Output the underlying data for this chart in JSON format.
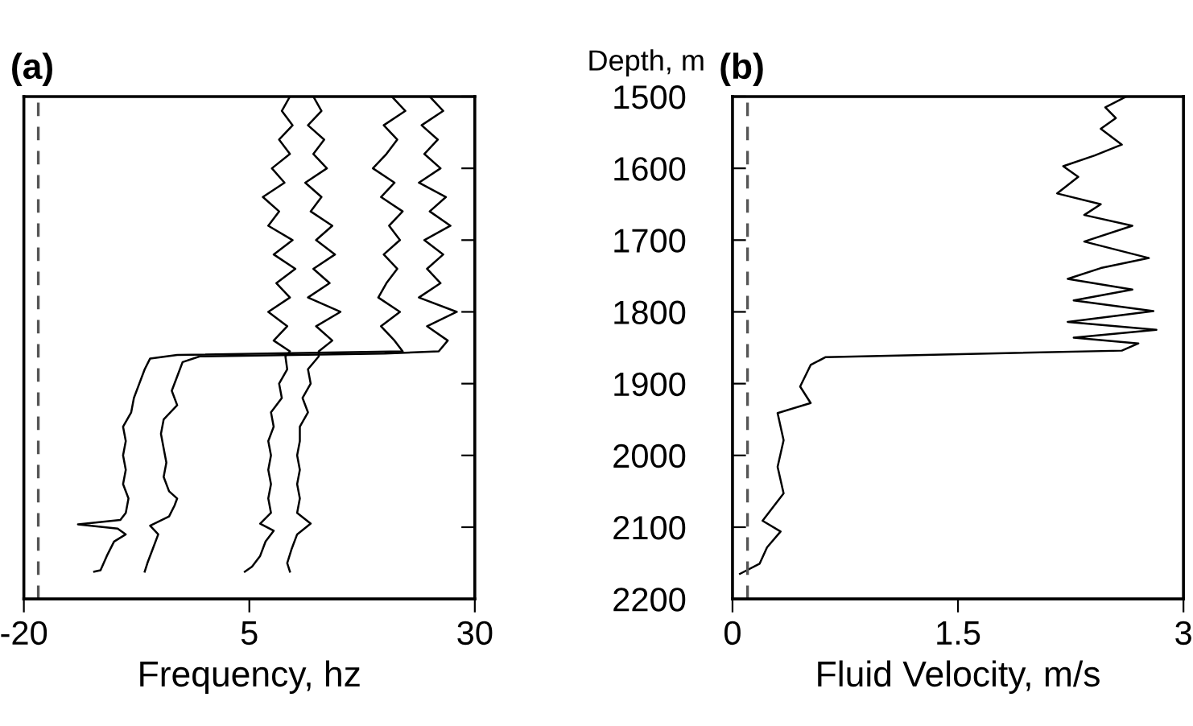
{
  "chart_data": [
    {
      "type": "line",
      "title": "(a)",
      "xlabel": "Frequency, hz",
      "ylabel": "Depth, m",
      "orientation": "horizontal",
      "xlim": [
        -20,
        30
      ],
      "xticks": [
        -20,
        5,
        30
      ],
      "ylim": [
        2200,
        1500
      ],
      "yticks": [
        1500,
        1600,
        1700,
        1800,
        1900,
        2000,
        2100,
        2200
      ],
      "grid": false,
      "marker": "none",
      "line_style": "solid",
      "ref_lines": [
        {
          "axis": "x",
          "value": -18.4,
          "color": "#555555",
          "line_style": "dashed"
        }
      ],
      "series": [
        {
          "color": "#000000",
          "x": [
            1500,
            1520,
            1540,
            1560,
            1580,
            1600,
            1620,
            1640,
            1660,
            1680,
            1700,
            1720,
            1740,
            1760,
            1780,
            1800,
            1820,
            1840,
            1855,
            1862,
            1880,
            1900,
            1920,
            1940,
            1960,
            1980,
            2000,
            2020,
            2040,
            2060,
            2080,
            2095,
            2105,
            2120,
            2140,
            2155,
            2162
          ],
          "values": [
            9.5,
            8.6,
            9.8,
            8.3,
            9.5,
            7.5,
            8.9,
            6.5,
            8.3,
            7.1,
            9.8,
            7.7,
            10.1,
            8.0,
            9.5,
            7.1,
            9.2,
            7.7,
            9.5,
            9.0,
            9.2,
            8.3,
            8.6,
            7.4,
            7.7,
            7.1,
            7.4,
            7.1,
            7.4,
            7.1,
            7.4,
            6.2,
            7.7,
            6.8,
            6.2,
            5.3,
            4.5
          ]
        },
        {
          "color": "#000000",
          "x": [
            1500,
            1520,
            1540,
            1560,
            1580,
            1600,
            1620,
            1640,
            1660,
            1680,
            1700,
            1720,
            1740,
            1760,
            1780,
            1800,
            1820,
            1840,
            1855,
            1862,
            1880,
            1900,
            1920,
            1940,
            1960,
            1980,
            2000,
            2020,
            2040,
            2060,
            2080,
            2095,
            2110,
            2130,
            2150,
            2162
          ],
          "values": [
            12.1,
            13.0,
            11.5,
            13.3,
            12.1,
            13.6,
            11.2,
            13.0,
            11.8,
            14.2,
            12.4,
            14.5,
            12.1,
            13.9,
            11.5,
            15.1,
            12.4,
            14.2,
            12.7,
            12.7,
            11.5,
            11.8,
            10.9,
            11.5,
            10.6,
            10.6,
            10.3,
            10.6,
            10.3,
            10.6,
            10.3,
            11.8,
            10.3,
            9.7,
            9.2,
            9.5
          ]
        },
        {
          "color": "#000000",
          "x": [
            1500,
            1520,
            1540,
            1560,
            1580,
            1600,
            1620,
            1640,
            1660,
            1680,
            1700,
            1720,
            1740,
            1760,
            1780,
            1800,
            1820,
            1840,
            1855,
            1860,
            1865,
            1880,
            1900,
            1920,
            1940,
            1960,
            1980,
            2000,
            2020,
            2040,
            2060,
            2080,
            2090,
            2096,
            2102,
            2110,
            2120,
            2140,
            2160,
            2162
          ],
          "values": [
            20.8,
            22.3,
            19.9,
            21.4,
            20.2,
            18.7,
            21.1,
            19.6,
            22.0,
            20.5,
            21.7,
            19.9,
            21.4,
            20.2,
            19.3,
            21.7,
            19.6,
            21.1,
            22.0,
            -3.0,
            -6.0,
            -6.6,
            -7.2,
            -7.8,
            -8.1,
            -9.0,
            -8.7,
            -9.0,
            -8.7,
            -9.0,
            -8.4,
            -8.7,
            -9.3,
            -14.0,
            -9.6,
            -8.7,
            -10.0,
            -10.8,
            -11.5,
            -12.2
          ]
        },
        {
          "color": "#000000",
          "x": [
            1500,
            1520,
            1540,
            1560,
            1580,
            1600,
            1620,
            1640,
            1660,
            1680,
            1700,
            1720,
            1740,
            1760,
            1780,
            1800,
            1820,
            1840,
            1855,
            1858,
            1862,
            1870,
            1890,
            1910,
            1930,
            1950,
            1970,
            1990,
            2010,
            2030,
            2050,
            2060,
            2070,
            2085,
            2098,
            2110,
            2130,
            2150,
            2162
          ],
          "values": [
            25.0,
            26.5,
            24.1,
            25.9,
            24.4,
            26.2,
            23.8,
            26.8,
            25.0,
            27.3,
            24.4,
            26.5,
            24.7,
            26.2,
            23.8,
            28.0,
            24.7,
            27.0,
            26.0,
            20.0,
            -0.5,
            -2.4,
            -3.0,
            -3.6,
            -3.0,
            -4.5,
            -4.8,
            -4.5,
            -4.2,
            -4.5,
            -3.9,
            -3.0,
            -3.3,
            -3.9,
            -6.0,
            -5.1,
            -5.7,
            -6.3,
            -6.6
          ]
        }
      ]
    },
    {
      "type": "line",
      "title": "(b)",
      "xlabel": "Fluid Velocity, m/s",
      "orientation": "horizontal",
      "xlim": [
        0,
        3
      ],
      "xticks": [
        0,
        1.5,
        3
      ],
      "ylim": [
        2200,
        1500
      ],
      "yticks": [
        1500,
        1600,
        1700,
        1800,
        1900,
        2000,
        2100,
        2200
      ],
      "tick_labels": "x",
      "grid": false,
      "marker": "none",
      "line_style": "solid",
      "ref_lines": [
        {
          "axis": "x",
          "value": 0.1,
          "color": "#555555",
          "line_style": "dashed"
        }
      ],
      "series": [
        {
          "color": "#000000",
          "x": [
            1500,
            1515,
            1530,
            1545,
            1567,
            1582,
            1597,
            1612,
            1635,
            1650,
            1665,
            1680,
            1702,
            1725,
            1739,
            1754,
            1769,
            1784,
            1799,
            1814,
            1825,
            1836,
            1844,
            1854,
            1863,
            1874,
            1904,
            1927,
            1941,
            1979,
            2016,
            2053,
            2091,
            2106,
            2128,
            2151,
            2165
          ],
          "values": [
            2.62,
            2.48,
            2.55,
            2.45,
            2.59,
            2.41,
            2.2,
            2.3,
            2.16,
            2.45,
            2.34,
            2.66,
            2.34,
            2.77,
            2.45,
            2.23,
            2.66,
            2.27,
            2.8,
            2.23,
            2.82,
            2.27,
            2.7,
            2.59,
            0.62,
            0.52,
            0.45,
            0.52,
            0.3,
            0.34,
            0.3,
            0.34,
            0.2,
            0.32,
            0.23,
            0.18,
            0.05
          ]
        }
      ]
    }
  ]
}
